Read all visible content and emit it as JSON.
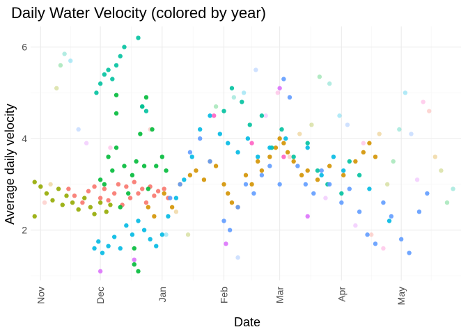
{
  "chart_data": {
    "type": "scatter",
    "title": "Daily Water Velocity (colored by year)",
    "xlabel": "Date",
    "ylabel": "Average daily velocity",
    "x_ticks": [
      "Nov",
      "Dec",
      "Jan",
      "Feb",
      "Mar",
      "Apr",
      "May"
    ],
    "y_ticks": [
      2,
      4,
      6
    ],
    "ylim": [
      0.9,
      6.45
    ],
    "xlim": [
      "Oct 27",
      "May 31"
    ],
    "grid": true,
    "legend": "none",
    "point_colors": [
      "#F8766D",
      "#D39200",
      "#93AA00",
      "#00BA38",
      "#00C19F",
      "#00B9E3",
      "#619CFF",
      "#DB72FB",
      "#FF61C3"
    ],
    "series": [
      {
        "color": "#F8766D",
        "points": [
          [
            "Nov 15",
            2.9
          ],
          [
            "Nov 18",
            2.75
          ],
          [
            "Nov 22",
            2.6
          ],
          [
            "Nov 25",
            2.85
          ],
          [
            "Nov 28",
            2.95
          ],
          [
            "Dec 1",
            2.7
          ],
          [
            "Dec 3",
            2.9
          ],
          [
            "Dec 5",
            2.65
          ],
          [
            "Dec 8",
            2.8
          ],
          [
            "Dec 10",
            3.0
          ],
          [
            "Dec 12",
            2.55
          ],
          [
            "Dec 14",
            2.95
          ],
          [
            "Dec 16",
            2.7
          ],
          [
            "Dec 18",
            3.05
          ],
          [
            "Dec 20",
            2.8
          ],
          [
            "Dec 22",
            2.9
          ],
          [
            "Dec 24",
            2.6
          ],
          [
            "Dec 26",
            2.95
          ],
          [
            "Dec 28",
            2.75
          ],
          [
            "Dec 30",
            2.85
          ],
          [
            "Jan 2",
            2.9
          ],
          [
            "Jan 4",
            2.7
          ]
        ]
      },
      {
        "color": "#D39200",
        "points": [
          [
            "Dec 25",
            2.5
          ],
          [
            "Dec 28",
            2.3
          ],
          [
            "Jan 2",
            2.8
          ],
          [
            "Jan 6",
            2.5
          ],
          [
            "Jan 10",
            3.0
          ],
          [
            "Jan 15",
            3.2
          ],
          [
            "Jan 18",
            3.3
          ],
          [
            "Jan 22",
            3.1
          ],
          [
            "Jan 25",
            3.5
          ],
          [
            "Jan 28",
            3.4
          ],
          [
            "Feb 1",
            3.0
          ],
          [
            "Feb 3",
            2.8
          ],
          [
            "Feb 5",
            2.6
          ],
          [
            "Feb 8",
            2.5
          ],
          [
            "Feb 12",
            3.2
          ],
          [
            "Feb 15",
            3.0
          ],
          [
            "Feb 18",
            3.5
          ],
          [
            "Feb 20",
            3.3
          ],
          [
            "Feb 24",
            3.6
          ],
          [
            "Feb 27",
            3.8
          ],
          [
            "Mar 1",
            4.0
          ],
          [
            "Mar 3",
            3.9
          ],
          [
            "Mar 5",
            3.7
          ],
          [
            "Mar 8",
            3.5
          ],
          [
            "Mar 12",
            3.2
          ],
          [
            "Mar 15",
            3.3
          ],
          [
            "Mar 20",
            3.1
          ],
          [
            "Mar 26",
            3.4
          ],
          [
            "Apr 2",
            3.2
          ],
          [
            "Apr 8",
            3.5
          ],
          [
            "Apr 12",
            3.7
          ],
          [
            "Apr 15",
            3.9
          ],
          [
            "Apr 18",
            3.6
          ]
        ]
      },
      {
        "color": "#93AA00",
        "points": [
          [
            "Oct 29",
            3.05
          ],
          [
            "Nov 1",
            2.95
          ],
          [
            "Nov 4",
            2.8
          ],
          [
            "Nov 7",
            2.65
          ],
          [
            "Nov 10",
            2.9
          ],
          [
            "Nov 12",
            2.55
          ],
          [
            "Nov 14",
            2.75
          ],
          [
            "Nov 17",
            2.6
          ],
          [
            "Nov 20",
            2.45
          ],
          [
            "Nov 23",
            2.7
          ],
          [
            "Nov 26",
            2.5
          ],
          [
            "Nov 28",
            2.35
          ],
          [
            "Dec 1",
            2.6
          ],
          [
            "Dec 4",
            2.4
          ],
          [
            "Dec 6",
            2.55
          ],
          [
            "Oct 29",
            2.3
          ]
        ]
      },
      {
        "color": "#00BA38",
        "points": [
          [
            "Dec 1",
            3.1
          ],
          [
            "Dec 3",
            3.0
          ],
          [
            "Dec 5",
            3.6
          ],
          [
            "Dec 7",
            3.3
          ],
          [
            "Dec 9",
            3.8
          ],
          [
            "Dec 11",
            2.5
          ],
          [
            "Dec 13",
            3.4
          ],
          [
            "Dec 15",
            2.8
          ],
          [
            "Dec 17",
            3.2
          ],
          [
            "Dec 19",
            3.5
          ],
          [
            "Dec 21",
            4.1
          ],
          [
            "Dec 23",
            3.4
          ],
          [
            "Dec 25",
            2.9
          ],
          [
            "Dec 27",
            4.2
          ],
          [
            "Dec 29",
            3.4
          ],
          [
            "Jan 1",
            3.6
          ],
          [
            "Jan 3",
            3.3
          ],
          [
            "Dec 9",
            4.55
          ],
          [
            "Dec 9",
            4.95
          ],
          [
            "Dec 22",
            4.7
          ],
          [
            "Dec 24",
            4.9
          ],
          [
            "Dec 18",
            1.6
          ],
          [
            "Dec 18",
            1.25
          ],
          [
            "Dec 20",
            1.1
          ]
        ]
      },
      {
        "color": "#00C19F",
        "points": [
          [
            "Nov 29",
            5.0
          ],
          [
            "Dec 1",
            5.2
          ],
          [
            "Dec 3",
            5.4
          ],
          [
            "Dec 5",
            5.5
          ],
          [
            "Dec 7",
            5.3
          ],
          [
            "Dec 9",
            5.6
          ],
          [
            "Dec 11",
            5.8
          ],
          [
            "Dec 13",
            6.0
          ],
          [
            "Dec 20",
            6.2
          ],
          [
            "Dec 22",
            4.7
          ],
          [
            "Dec 24",
            4.6
          ],
          [
            "Feb 1",
            4.6
          ],
          [
            "Feb 5",
            5.1
          ],
          [
            "Feb 10",
            4.8
          ],
          [
            "Feb 14",
            4.3
          ],
          [
            "Feb 20",
            4.5
          ],
          [
            "Feb 25",
            3.8
          ],
          [
            "Mar 2",
            4.2
          ],
          [
            "Mar 8",
            3.6
          ],
          [
            "Mar 15",
            3.9
          ],
          [
            "Mar 20",
            3.3
          ],
          [
            "Mar 25",
            3.0
          ],
          [
            "Apr 1",
            2.8
          ],
          [
            "Apr 5",
            3.5
          ],
          [
            "Apr 10",
            3.2
          ]
        ]
      },
      {
        "color": "#00B9E3",
        "points": [
          [
            "Nov 28",
            1.6
          ],
          [
            "Nov 30",
            1.75
          ],
          [
            "Dec 2",
            1.5
          ],
          [
            "Dec 5",
            1.65
          ],
          [
            "Dec 8",
            1.85
          ],
          [
            "Dec 11",
            1.6
          ],
          [
            "Dec 14",
            2.1
          ],
          [
            "Dec 17",
            1.9
          ],
          [
            "Dec 20",
            2.2
          ],
          [
            "Dec 23",
            2.0
          ],
          [
            "Dec 26",
            1.8
          ],
          [
            "Dec 29",
            1.65
          ],
          [
            "Jan 1",
            1.9
          ],
          [
            "Jan 4",
            2.3
          ],
          [
            "Jan 8",
            2.7
          ],
          [
            "Jan 12",
            3.1
          ],
          [
            "Jan 16",
            3.6
          ],
          [
            "Jan 20",
            4.2
          ],
          [
            "Jan 25",
            4.5
          ],
          [
            "Jan 30",
            4.1
          ],
          [
            "Feb 3",
            3.9
          ],
          [
            "Feb 8",
            3.7
          ],
          [
            "Feb 13",
            4.0
          ],
          [
            "Feb 18",
            3.6
          ],
          [
            "Feb 24",
            3.8
          ],
          [
            "Mar 4",
            4.0
          ],
          [
            "Mar 15",
            3.8
          ],
          [
            "Mar 22",
            3.2
          ],
          [
            "Mar 28",
            3.6
          ],
          [
            "Apr 2",
            3.3
          ],
          [
            "Apr 15",
            2.9
          ],
          [
            "Apr 25",
            2.2
          ]
        ]
      },
      {
        "color": "#619CFF",
        "points": [
          [
            "Jan 5",
            2.7
          ],
          [
            "Jan 10",
            3.0
          ],
          [
            "Jan 15",
            3.7
          ],
          [
            "Jan 20",
            4.0
          ],
          [
            "Jan 25",
            3.5
          ],
          [
            "Feb 1",
            2.2
          ],
          [
            "Feb 4",
            2.0
          ],
          [
            "Feb 8",
            2.5
          ],
          [
            "Feb 12",
            3.0
          ],
          [
            "Feb 16",
            2.8
          ],
          [
            "Feb 20",
            3.2
          ],
          [
            "Feb 24",
            3.4
          ],
          [
            "Mar 1",
            3.0
          ],
          [
            "Mar 3",
            5.3
          ],
          [
            "Mar 6",
            4.9
          ],
          [
            "Mar 10",
            3.4
          ],
          [
            "Mar 14",
            3.0
          ],
          [
            "Mar 18",
            2.8
          ],
          [
            "Mar 22",
            3.3
          ],
          [
            "Mar 26",
            3.0
          ],
          [
            "Apr 1",
            2.6
          ],
          [
            "Apr 5",
            2.9
          ],
          [
            "Apr 10",
            2.4
          ],
          [
            "Apr 14",
            1.9
          ],
          [
            "Apr 18",
            1.7
          ],
          [
            "Apr 22",
            2.6
          ],
          [
            "Apr 26",
            2.3
          ],
          [
            "May 1",
            1.8
          ],
          [
            "May 5",
            1.5
          ],
          [
            "May 10",
            2.4
          ],
          [
            "May 14",
            2.8
          ]
        ]
      },
      {
        "color": "#DB72FB",
        "points": [
          [
            "Dec 1",
            1.1
          ],
          [
            "Dec 18",
            1.35
          ],
          [
            "Feb 2",
            1.7
          ],
          [
            "Mar 1",
            5.1
          ],
          [
            "Mar 15",
            2.3
          ]
        ]
      },
      {
        "color": "#FF61C3",
        "points": [
          [
            "Jan 27",
            4.5
          ],
          [
            "Feb 15",
            3.9
          ],
          [
            "Mar 3",
            3.6
          ]
        ]
      }
    ],
    "light_points": [
      [
        "Nov 3",
        2.6
      ],
      [
        "Nov 6",
        3.0
      ],
      [
        "Nov 9",
        5.1
      ],
      [
        "Nov 11",
        5.6
      ],
      [
        "Nov 13",
        5.85
      ],
      [
        "Nov 16",
        5.7
      ],
      [
        "Nov 20",
        4.2
      ],
      [
        "Nov 24",
        3.9
      ],
      [
        "Dec 6",
        3.8
      ],
      [
        "Dec 26",
        4.2
      ],
      [
        "Jan 8",
        2.4
      ],
      [
        "Jan 14",
        1.9
      ],
      [
        "Jan 28",
        4.7
      ],
      [
        "Feb 6",
        4.9
      ],
      [
        "Feb 11",
        5.0
      ],
      [
        "Feb 17",
        5.5
      ],
      [
        "Feb 22",
        4.5
      ],
      [
        "Feb 28",
        5.0
      ],
      [
        "Mar 6",
        3.6
      ],
      [
        "Mar 11",
        4.1
      ],
      [
        "Mar 17",
        4.3
      ],
      [
        "Mar 21",
        5.35
      ],
      [
        "Mar 26",
        5.2
      ],
      [
        "Mar 31",
        4.5
      ],
      [
        "Apr 4",
        4.3
      ],
      [
        "Apr 8",
        2.1
      ],
      [
        "Apr 12",
        3.9
      ],
      [
        "Apr 16",
        1.9
      ],
      [
        "Apr 20",
        4.1
      ],
      [
        "Apr 24",
        3.0
      ],
      [
        "Apr 27",
        3.5
      ],
      [
        "Apr 30",
        4.2
      ],
      [
        "May 3",
        5.0
      ],
      [
        "May 6",
        4.1
      ],
      [
        "May 9",
        3.1
      ],
      [
        "May 12",
        4.8
      ],
      [
        "May 15",
        4.6
      ],
      [
        "May 18",
        3.6
      ],
      [
        "May 21",
        3.3
      ],
      [
        "May 24",
        2.6
      ],
      [
        "May 27",
        2.9
      ],
      [
        "Jan 3",
        1.9
      ],
      [
        "Feb 8",
        1.4
      ],
      [
        "Mar 24",
        2.7
      ],
      [
        "Apr 22",
        1.6
      ]
    ]
  }
}
